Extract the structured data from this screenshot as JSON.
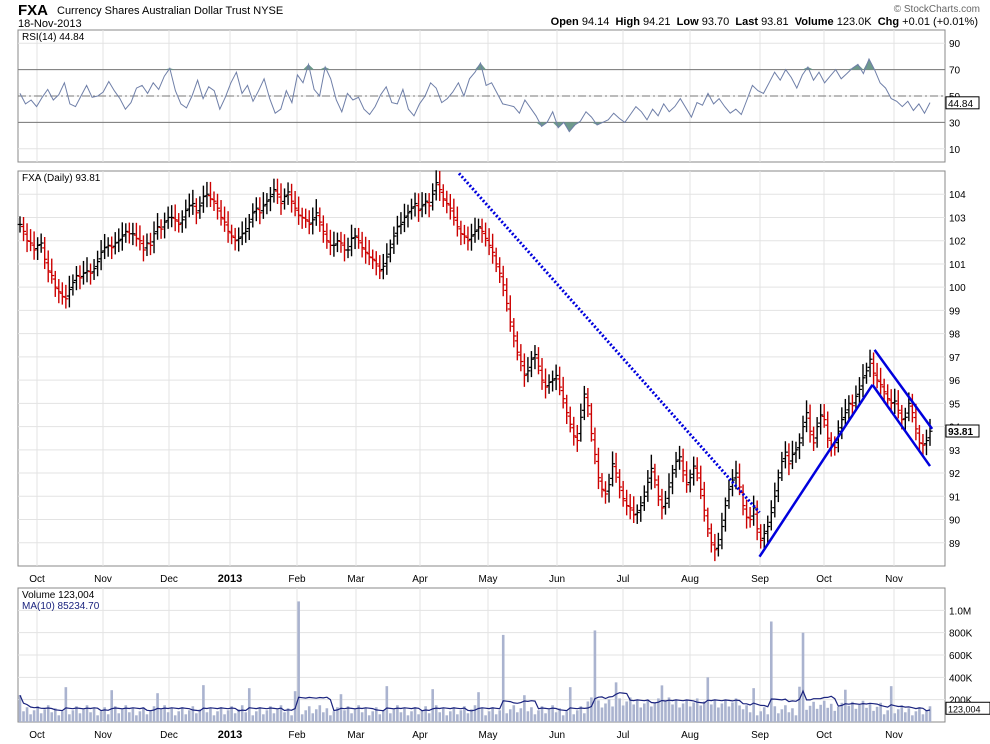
{
  "header": {
    "symbol": "FXA",
    "name": "Currency Shares Australian Dollar Trust",
    "exchange": "NYSE",
    "date": "18-Nov-2013",
    "brand": "© StockCharts.com",
    "open_label": "Open",
    "open": "94.14",
    "high_label": "High",
    "high": "94.21",
    "low_label": "Low",
    "low": "93.70",
    "last_label": "Last",
    "last": "93.81",
    "volume_label": "Volume",
    "volume": "123.0K",
    "chg_label": "Chg",
    "chg": "+0.01 (+0.01%)"
  },
  "colors": {
    "up": "#000000",
    "down": "#cc0000",
    "trend": "#0000dd",
    "rsi_line": "#6f7fa8",
    "volume_bar": "#aab3cf",
    "ma_line": "#1a237e",
    "grid": "#e3e3e3"
  },
  "months": [
    "Oct",
    "Nov",
    "Dec",
    "2013",
    "Feb",
    "Mar",
    "Apr",
    "May",
    "Jun",
    "Jul",
    "Aug",
    "Sep",
    "Oct",
    "Nov"
  ],
  "chart_data": [
    {
      "type": "line",
      "panel": "rsi",
      "legend": "RSI(14) 44.84",
      "last_value": "44.84",
      "ylim": [
        0,
        100
      ],
      "yticks": [
        10,
        30,
        50,
        70,
        90
      ],
      "reference_lines": [
        30,
        50,
        70
      ],
      "values": [
        52,
        44,
        47,
        42,
        49,
        55,
        47,
        51,
        60,
        44,
        42,
        50,
        58,
        49,
        50,
        53,
        61,
        54,
        48,
        40,
        45,
        56,
        58,
        52,
        60,
        55,
        65,
        71,
        54,
        44,
        41,
        50,
        62,
        48,
        57,
        54,
        40,
        49,
        60,
        68,
        52,
        58,
        46,
        54,
        63,
        48,
        37,
        40,
        54,
        45,
        66,
        60,
        74,
        55,
        50,
        72,
        63,
        47,
        38,
        52,
        47,
        49,
        40,
        36,
        42,
        51,
        57,
        45,
        44,
        55,
        40,
        35,
        44,
        50,
        60,
        56,
        45,
        48,
        53,
        60,
        50,
        63,
        68,
        75,
        58,
        60,
        52,
        44,
        43,
        42,
        37,
        47,
        41,
        35,
        27,
        30,
        38,
        26,
        30,
        23,
        28,
        31,
        38,
        34,
        28,
        30,
        32,
        37,
        33,
        30,
        36,
        42,
        38,
        32,
        40,
        35,
        44,
        38,
        42,
        48,
        41,
        34,
        45,
        43,
        52,
        44,
        48,
        42,
        37,
        40,
        36,
        47,
        58,
        54,
        52,
        60,
        68,
        62,
        70,
        64,
        56,
        66,
        72,
        62,
        68,
        60,
        65,
        70,
        63,
        67,
        71,
        74,
        67,
        78,
        70,
        60,
        56,
        48,
        46,
        42,
        46,
        39,
        44,
        37,
        45
      ],
      "x": "one value per trading day, Sep-2012 to 18-Nov-2013"
    },
    {
      "type": "ohlc",
      "panel": "price",
      "legend": "FXA (Daily) 93.81",
      "last_value": "93.81",
      "ylim": [
        88,
        105
      ],
      "yticks": [
        89,
        90,
        91,
        92,
        93,
        94,
        95,
        96,
        97,
        98,
        99,
        100,
        101,
        102,
        103,
        104
      ],
      "close": [
        102.7,
        102.4,
        102.0,
        101.9,
        101.6,
        101.8,
        101.9,
        101.2,
        100.7,
        100.5,
        100.0,
        99.8,
        99.6,
        99.5,
        99.9,
        100.2,
        100.5,
        100.4,
        100.6,
        100.7,
        100.6,
        100.8,
        101.1,
        101.5,
        101.7,
        101.8,
        101.7,
        101.9,
        102.0,
        102.2,
        102.4,
        102.3,
        102.3,
        102.1,
        102.0,
        101.6,
        101.9,
        101.8,
        102.3,
        102.6,
        102.5,
        102.8,
        103.0,
        103.0,
        102.9,
        102.7,
        102.9,
        103.3,
        103.5,
        103.6,
        103.2,
        103.5,
        103.9,
        104.0,
        103.8,
        103.7,
        103.4,
        103.0,
        102.8,
        102.4,
        102.2,
        102.0,
        102.1,
        102.3,
        102.4,
        102.8,
        103.2,
        103.4,
        103.2,
        103.5,
        103.7,
        103.9,
        104.2,
        104.0,
        103.6,
        103.9,
        104.1,
        103.7,
        103.4,
        103.1,
        103.0,
        102.9,
        102.7,
        102.9,
        103.2,
        102.8,
        102.4,
        102.0,
        101.8,
        101.8,
        102.0,
        101.9,
        101.6,
        101.6,
        102.1,
        102.2,
        102.0,
        101.7,
        101.5,
        101.3,
        101.2,
        101.0,
        100.7,
        100.9,
        101.3,
        101.7,
        102.2,
        102.6,
        102.7,
        103.0,
        103.2,
        103.4,
        103.6,
        103.3,
        103.5,
        103.7,
        103.5,
        104.0,
        104.5,
        104.2,
        103.8,
        103.6,
        103.4,
        103.0,
        102.6,
        102.3,
        102.2,
        102.0,
        102.2,
        102.4,
        102.6,
        102.4,
        102.1,
        101.8,
        101.5,
        101.0,
        100.6,
        100.1,
        99.3,
        98.5,
        97.9,
        97.2,
        96.8,
        96.2,
        96.4,
        96.9,
        97.1,
        96.6,
        96.0,
        95.7,
        95.9,
        96.0,
        96.2,
        95.7,
        95.2,
        94.6,
        94.1,
        93.6,
        93.4,
        94.4,
        95.4,
        94.9,
        93.7,
        92.8,
        91.8,
        91.3,
        91.1,
        91.5,
        92.4,
        92.0,
        91.4,
        90.9,
        90.6,
        90.5,
        90.2,
        90.3,
        90.6,
        91.0,
        91.6,
        92.2,
        91.7,
        91.0,
        90.5,
        90.7,
        91.4,
        92.0,
        92.5,
        92.7,
        92.1,
        91.5,
        91.8,
        92.3,
        92.0,
        91.3,
        90.4,
        89.6,
        89.0,
        88.7,
        88.9,
        89.7,
        90.6,
        91.3,
        91.7,
        92.0,
        91.4,
        90.6,
        90.1,
        90.0,
        90.5,
        89.6,
        89.1,
        89.4,
        89.7,
        90.3,
        91.0,
        91.8,
        92.5,
        92.9,
        92.4,
        92.8,
        93.0,
        93.3,
        94.0,
        94.6,
        93.8,
        93.3,
        94.0,
        94.5,
        94.3,
        93.5,
        93.2,
        93.1,
        93.8,
        94.3,
        94.6,
        95.0,
        94.9,
        95.3,
        95.6,
        96.1,
        96.4,
        96.9,
        96.3,
        96.0,
        95.8,
        95.5,
        95.2,
        95.0,
        95.1,
        94.7,
        94.3,
        94.4,
        95.0,
        94.6,
        93.9,
        93.3,
        93.2,
        93.4,
        93.8
      ],
      "trendlines": [
        {
          "name": "falling resistance (dotted)",
          "from": [
            "2013-04-11",
            104.9
          ],
          "to": [
            "2013-08-30",
            90.3
          ],
          "style": "dotted"
        },
        {
          "name": "rising support",
          "from": [
            "2013-08-30",
            88.4
          ],
          "to": [
            "2013-10-22",
            95.8
          ],
          "style": "solid"
        },
        {
          "name": "channel upper",
          "from": [
            "2013-10-23",
            97.3
          ],
          "to": [
            "2013-11-19",
            93.9
          ],
          "style": "solid"
        },
        {
          "name": "channel lower",
          "from": [
            "2013-10-22",
            95.8
          ],
          "to": [
            "2013-11-18",
            92.3
          ],
          "style": "solid"
        }
      ]
    },
    {
      "type": "bar",
      "panel": "volume",
      "legend": "Volume 123,004",
      "ma_legend": "MA(10) 85234.70",
      "last_volume": "123,004",
      "last_ma": "85234.70",
      "ylim": [
        0,
        1200000
      ],
      "yticks": [
        200000,
        400000,
        600000,
        800000,
        1000000
      ],
      "ytick_labels": [
        "200K",
        "400K",
        "600K",
        "800K",
        "1.0M"
      ],
      "spikes": [
        {
          "date": "2013-01-25",
          "value": 1080000
        },
        {
          "date": "2013-05-02",
          "value": 780000
        },
        {
          "date": "2013-06-14",
          "value": 820000
        },
        {
          "date": "2013-09-05",
          "value": 900000
        },
        {
          "date": "2013-09-20",
          "value": 800000
        }
      ],
      "ma_level": 85234.7
    }
  ]
}
